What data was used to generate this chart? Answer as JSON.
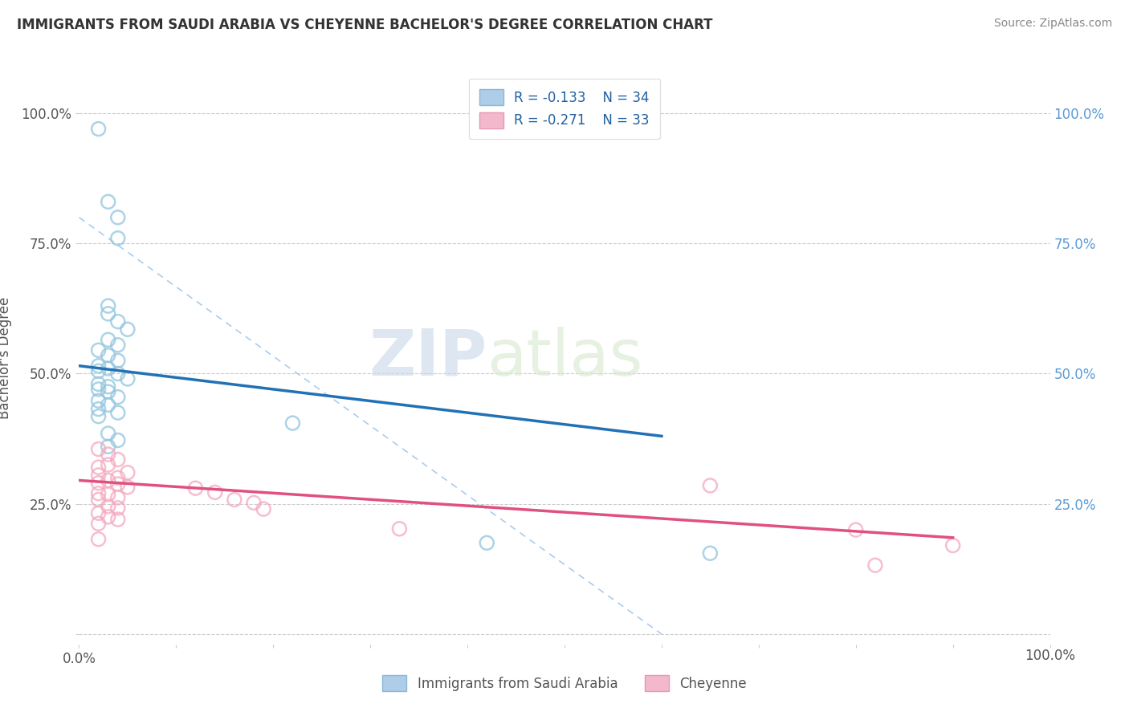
{
  "title": "IMMIGRANTS FROM SAUDI ARABIA VS CHEYENNE BACHELOR'S DEGREE CORRELATION CHART",
  "source": "Source: ZipAtlas.com",
  "ylabel": "Bachelor's Degree",
  "legend_blue_label": "Immigrants from Saudi Arabia",
  "legend_pink_label": "Cheyenne",
  "legend_blue_r": "R = -0.133",
  "legend_blue_n": "N = 34",
  "legend_pink_r": "R = -0.271",
  "legend_pink_n": "N = 33",
  "watermark_zip": "ZIP",
  "watermark_atlas": "atlas",
  "blue_color": "#92c5de",
  "pink_color": "#f4a9c0",
  "blue_line_color": "#2171b5",
  "pink_line_color": "#e05080",
  "blue_scatter": [
    [
      0.0002,
      0.97
    ],
    [
      0.0003,
      0.83
    ],
    [
      0.0004,
      0.8
    ],
    [
      0.0004,
      0.76
    ],
    [
      0.0003,
      0.63
    ],
    [
      0.0003,
      0.615
    ],
    [
      0.0004,
      0.6
    ],
    [
      0.0005,
      0.585
    ],
    [
      0.0003,
      0.565
    ],
    [
      0.0004,
      0.555
    ],
    [
      0.0002,
      0.545
    ],
    [
      0.0003,
      0.535
    ],
    [
      0.0004,
      0.525
    ],
    [
      0.0002,
      0.515
    ],
    [
      0.0003,
      0.51
    ],
    [
      0.0002,
      0.505
    ],
    [
      0.0004,
      0.5
    ],
    [
      0.0005,
      0.49
    ],
    [
      0.0002,
      0.48
    ],
    [
      0.0003,
      0.475
    ],
    [
      0.0002,
      0.47
    ],
    [
      0.0003,
      0.465
    ],
    [
      0.0004,
      0.455
    ],
    [
      0.0002,
      0.448
    ],
    [
      0.0003,
      0.44
    ],
    [
      0.0002,
      0.432
    ],
    [
      0.0004,
      0.425
    ],
    [
      0.0002,
      0.418
    ],
    [
      0.0022,
      0.405
    ],
    [
      0.0003,
      0.385
    ],
    [
      0.0004,
      0.372
    ],
    [
      0.0003,
      0.36
    ],
    [
      0.0042,
      0.175
    ],
    [
      0.0065,
      0.155
    ]
  ],
  "pink_scatter": [
    [
      0.0002,
      0.355
    ],
    [
      0.0003,
      0.345
    ],
    [
      0.0004,
      0.335
    ],
    [
      0.0003,
      0.325
    ],
    [
      0.0002,
      0.32
    ],
    [
      0.0005,
      0.31
    ],
    [
      0.0002,
      0.305
    ],
    [
      0.0004,
      0.3
    ],
    [
      0.0003,
      0.295
    ],
    [
      0.0002,
      0.29
    ],
    [
      0.0004,
      0.288
    ],
    [
      0.0005,
      0.282
    ],
    [
      0.0012,
      0.28
    ],
    [
      0.0014,
      0.272
    ],
    [
      0.0002,
      0.27
    ],
    [
      0.0003,
      0.268
    ],
    [
      0.0004,
      0.262
    ],
    [
      0.0002,
      0.258
    ],
    [
      0.0016,
      0.258
    ],
    [
      0.0018,
      0.252
    ],
    [
      0.0003,
      0.245
    ],
    [
      0.0004,
      0.242
    ],
    [
      0.0019,
      0.24
    ],
    [
      0.0002,
      0.232
    ],
    [
      0.0003,
      0.225
    ],
    [
      0.0004,
      0.22
    ],
    [
      0.0002,
      0.212
    ],
    [
      0.0033,
      0.202
    ],
    [
      0.0002,
      0.182
    ],
    [
      0.0065,
      0.285
    ],
    [
      0.008,
      0.2
    ],
    [
      0.0082,
      0.132
    ],
    [
      0.009,
      0.17
    ]
  ],
  "blue_line": [
    [
      0.0,
      0.515
    ],
    [
      0.006,
      0.38
    ]
  ],
  "pink_line": [
    [
      0.0,
      0.295
    ],
    [
      0.009,
      0.185
    ]
  ],
  "diag_line": [
    [
      0.0,
      0.8
    ],
    [
      0.006,
      0.0
    ]
  ],
  "xlim": [
    0.0,
    0.01
  ],
  "ylim": [
    -0.02,
    1.08
  ],
  "yticks": [
    0.0,
    0.25,
    0.5,
    0.75,
    1.0
  ],
  "ytick_labels_left": [
    "",
    "25.0%",
    "50.0%",
    "75.0%",
    "100.0%"
  ],
  "ytick_labels_right": [
    "",
    "25.0%",
    "50.0%",
    "75.0%",
    "100.0%"
  ],
  "xtick_positions": [
    0.0,
    0.001,
    0.002,
    0.003,
    0.004,
    0.005,
    0.006,
    0.007,
    0.008,
    0.009,
    0.01
  ],
  "xtick_label_left": "0.0%",
  "xtick_label_right": "100.0%",
  "background_color": "#ffffff",
  "grid_color": "#cccccc"
}
